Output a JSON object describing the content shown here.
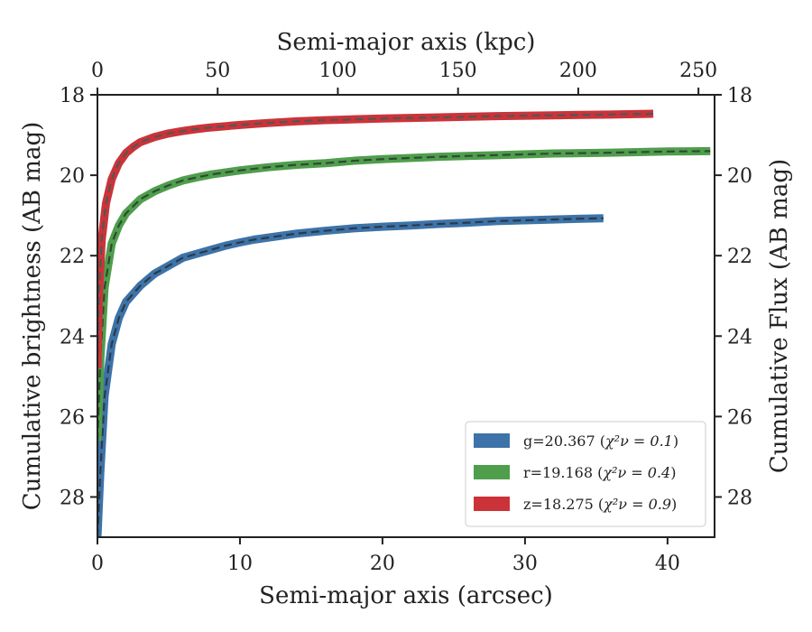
{
  "chart_data": {
    "type": "line",
    "title": "",
    "xlabel": "Semi-major axis (arcsec)",
    "ylabel": "Cumulative brightness (AB mag)",
    "x2label": "Semi-major axis (kpc)",
    "y2label": "Cumulative Flux (AB mag)",
    "xlim": [
      0,
      43.3
    ],
    "ylim": [
      29.0,
      18.0
    ],
    "y_inverted": true,
    "x2lim": [
      0,
      256.7
    ],
    "xticks": [
      0,
      10,
      20,
      30,
      40
    ],
    "yticks": [
      18,
      20,
      22,
      24,
      26,
      28
    ],
    "x2ticks": [
      0,
      50,
      100,
      150,
      200,
      250
    ],
    "y2ticks": [
      18,
      20,
      22,
      24,
      26,
      28
    ],
    "grid": false,
    "legend_position": "bottom-right",
    "series": [
      {
        "name": "g=20.367 ($\\chi^2_\\nu = 0.1$)",
        "legend_prefix": "g=20.367 (",
        "legend_math": "χ²ν = 0.1",
        "legend_suffix": ")",
        "color": "#3d73a8",
        "model_color": "#2b3a4a",
        "x": [
          0.0,
          0.2,
          0.5,
          1.0,
          1.5,
          2.0,
          3.0,
          4.0,
          5.0,
          6.0,
          7.0,
          8.0,
          9.0,
          10.0,
          11.0,
          12.0,
          14.0,
          16.0,
          18.0,
          20.0,
          22.0,
          24.0,
          26.0,
          28.0,
          30.0,
          32.0,
          34.0,
          35.5
        ],
        "values": [
          29.0,
          27.4,
          25.5,
          24.2,
          23.55,
          23.15,
          22.75,
          22.45,
          22.25,
          22.05,
          21.95,
          21.85,
          21.75,
          21.67,
          21.6,
          21.55,
          21.45,
          21.38,
          21.32,
          21.28,
          21.25,
          21.21,
          21.18,
          21.14,
          21.12,
          21.1,
          21.08,
          21.07
        ]
      },
      {
        "name": "r=19.168 ($\\chi^2_\\nu = 0.4$)",
        "legend_prefix": "r=19.168 (",
        "legend_math": "χ²ν = 0.4",
        "legend_suffix": ")",
        "color": "#4f9e4c",
        "model_color": "#2e4a34",
        "x": [
          0.0,
          0.2,
          0.5,
          1.0,
          1.5,
          2.0,
          3.0,
          4.0,
          5.0,
          6.0,
          7.0,
          8.0,
          10.0,
          12.0,
          14.0,
          16.0,
          18.0,
          20.0,
          24.0,
          28.0,
          32.0,
          36.0,
          40.0,
          43.0
        ],
        "values": [
          26.6,
          24.6,
          22.8,
          21.7,
          21.25,
          20.95,
          20.6,
          20.4,
          20.25,
          20.13,
          20.05,
          19.98,
          19.88,
          19.8,
          19.74,
          19.7,
          19.64,
          19.6,
          19.54,
          19.5,
          19.46,
          19.44,
          19.41,
          19.4
        ]
      },
      {
        "name": "z=18.275 ($\\chi^2_\\nu = 0.9$)",
        "legend_prefix": "z=18.275 (",
        "legend_math": "χ²ν = 0.9",
        "legend_suffix": ")",
        "color": "#cc3339",
        "model_color": "#555555",
        "x": [
          0.0,
          0.1,
          0.3,
          0.6,
          1.0,
          1.5,
          2.0,
          2.5,
          3.0,
          4.0,
          5.0,
          6.0,
          7.0,
          8.0,
          10.0,
          12.0,
          14.0,
          16.0,
          18.0,
          20.0,
          24.0,
          28.0,
          32.0,
          36.0,
          39.0
        ],
        "values": [
          24.8,
          23.0,
          21.6,
          20.7,
          20.1,
          19.7,
          19.45,
          19.3,
          19.18,
          19.05,
          18.96,
          18.9,
          18.85,
          18.81,
          18.75,
          18.7,
          18.66,
          18.63,
          18.61,
          18.59,
          18.56,
          18.53,
          18.51,
          18.49,
          18.47
        ]
      }
    ]
  }
}
